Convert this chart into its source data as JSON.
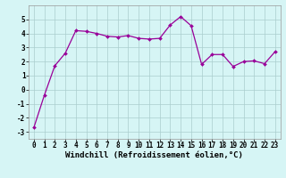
{
  "x": [
    0,
    1,
    2,
    3,
    4,
    5,
    6,
    7,
    8,
    9,
    10,
    11,
    12,
    13,
    14,
    15,
    16,
    17,
    18,
    19,
    20,
    21,
    22,
    23
  ],
  "y": [
    -2.7,
    -0.4,
    1.7,
    2.6,
    4.2,
    4.15,
    4.0,
    3.8,
    3.75,
    3.85,
    3.65,
    3.6,
    3.65,
    4.6,
    5.2,
    4.55,
    1.8,
    2.5,
    2.5,
    1.65,
    2.0,
    2.05,
    1.85,
    2.7
  ],
  "line_color": "#990099",
  "marker": "D",
  "marker_size": 2.0,
  "bg_color": "#d6f5f5",
  "grid_color": "#aacece",
  "xlabel": "Windchill (Refroidissement éolien,°C)",
  "ylim": [
    -3.5,
    6.0
  ],
  "xlim": [
    -0.5,
    23.5
  ],
  "yticks": [
    -3,
    -2,
    -1,
    0,
    1,
    2,
    3,
    4,
    5
  ],
  "xticks": [
    0,
    1,
    2,
    3,
    4,
    5,
    6,
    7,
    8,
    9,
    10,
    11,
    12,
    13,
    14,
    15,
    16,
    17,
    18,
    19,
    20,
    21,
    22,
    23
  ],
  "tick_fontsize": 5.5,
  "xlabel_fontsize": 6.5,
  "linewidth": 0.9
}
